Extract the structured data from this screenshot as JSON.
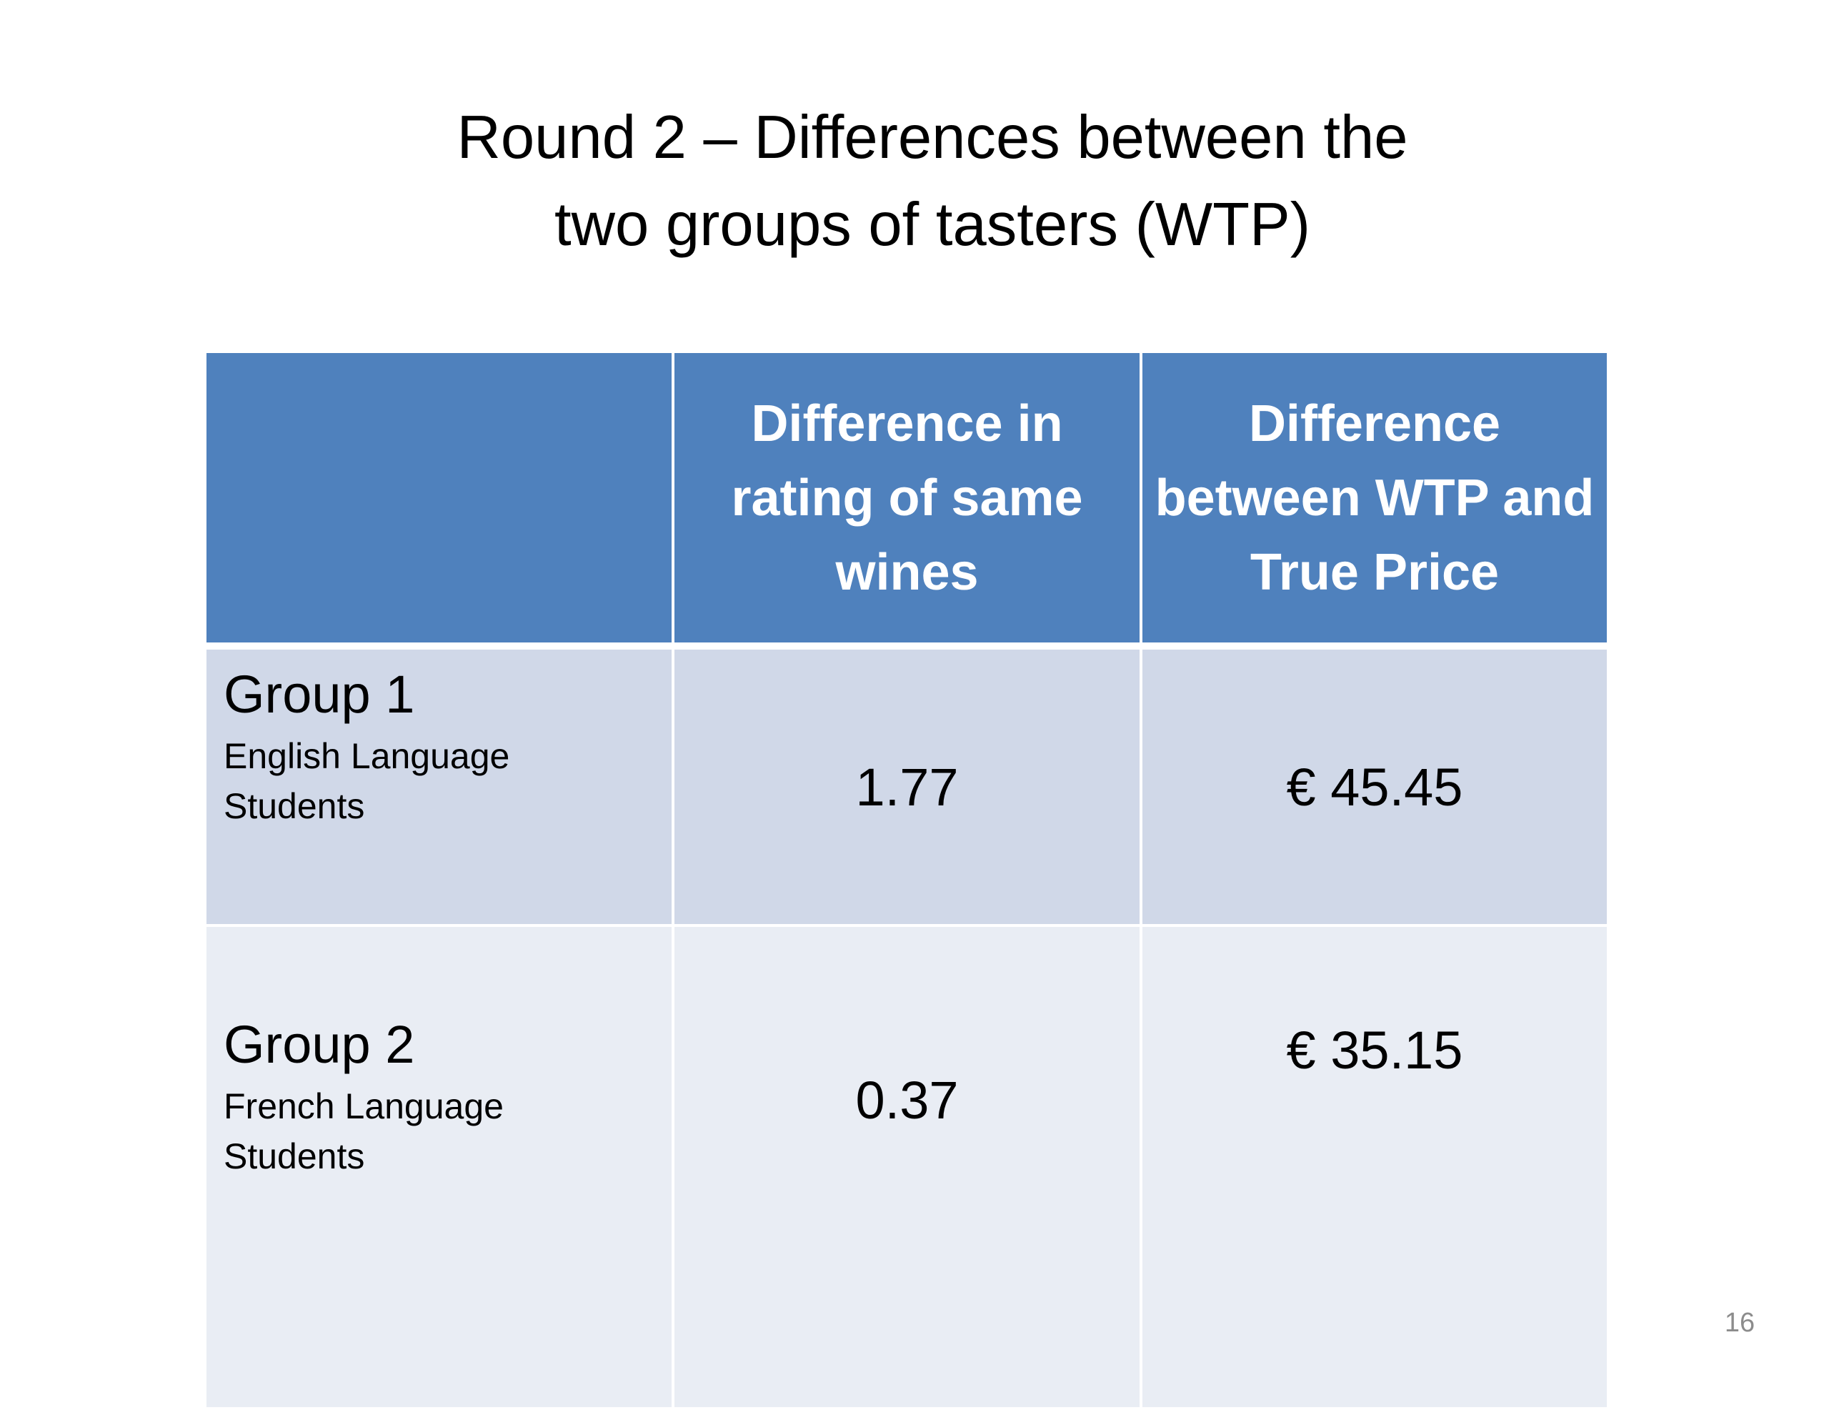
{
  "slide": {
    "title_line1": "Round 2 – Differences between the",
    "title_line2": "two groups of tasters (WTP)",
    "page_number": "16"
  },
  "table": {
    "headers": [
      "",
      "Difference in rating of same wines",
      "Difference between WTP and True Price"
    ],
    "rows": [
      {
        "group": "Group 1",
        "description": "English Language Students",
        "rating_difference": "1.77",
        "wtp_difference": "€ 45.45"
      },
      {
        "group": "Group 2",
        "description": "French Language Students",
        "rating_difference": "0.37",
        "wtp_difference": "€ 35.15"
      }
    ]
  },
  "colors": {
    "header_background": "#4f81bd",
    "row_odd_background": "#d0d8e8",
    "row_even_background": "#e9edf4",
    "header_text": "#ffffff"
  }
}
